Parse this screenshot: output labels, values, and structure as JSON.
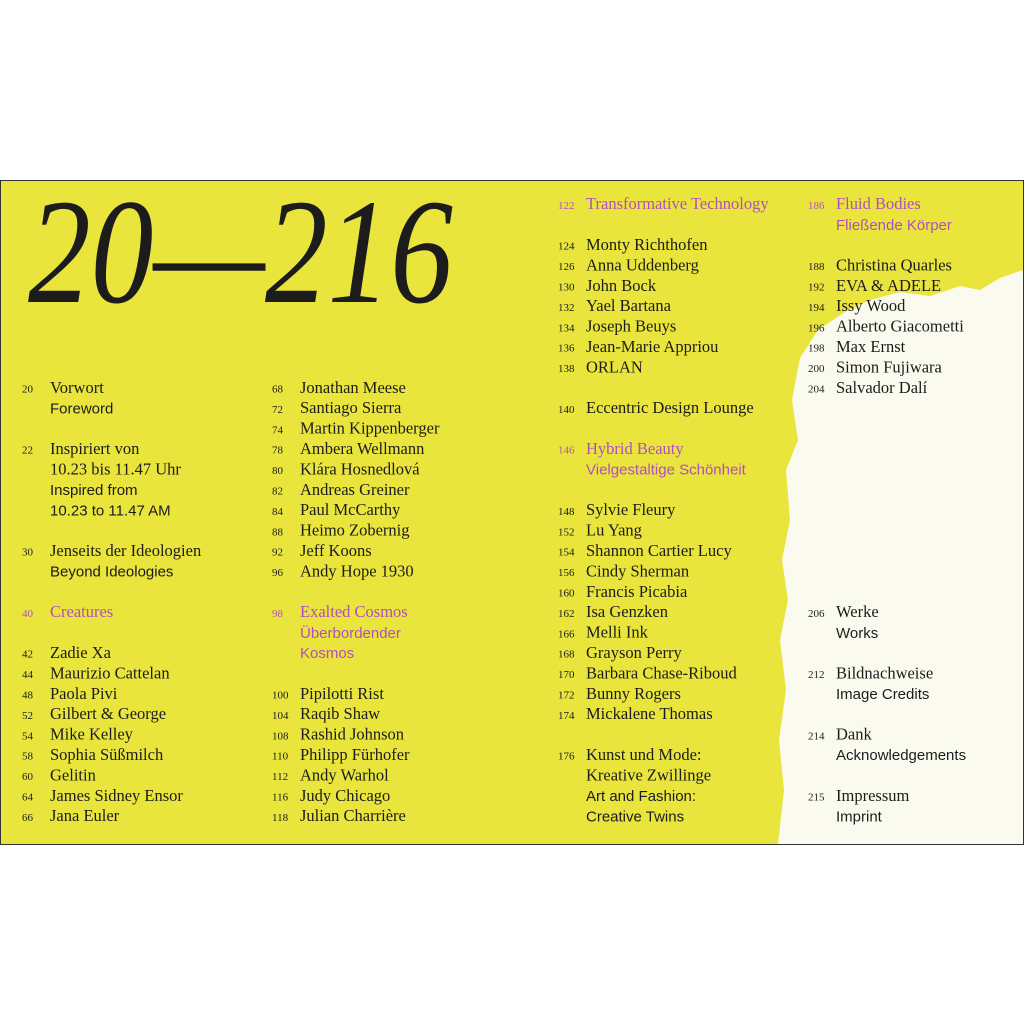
{
  "title": "20—216",
  "columns": [
    {
      "groups": [
        {
          "entries": [
            {
              "page": "20",
              "lines": [
                "Vorwort"
              ],
              "en": [
                "Foreword"
              ]
            }
          ]
        },
        {
          "entries": [
            {
              "page": "22",
              "lines": [
                "Inspiriert von",
                "10.23 bis 11.47 Uhr"
              ],
              "en": [
                "Inspired from",
                "10.23 to 11.47 AM"
              ]
            }
          ]
        },
        {
          "entries": [
            {
              "page": "30",
              "lines": [
                "Jenseits der Ideologien"
              ],
              "en": [
                "Beyond Ideologies"
              ]
            }
          ]
        },
        {
          "entries": [
            {
              "page": "40",
              "lines": [
                "Creatures"
              ],
              "en": [],
              "color": "#b14fc0"
            }
          ]
        },
        {
          "entries": [
            {
              "page": "42",
              "lines": [
                "Zadie Xa"
              ],
              "en": []
            },
            {
              "page": "44",
              "lines": [
                "Maurizio Cattelan"
              ],
              "en": []
            },
            {
              "page": "48",
              "lines": [
                "Paola Pivi"
              ],
              "en": []
            },
            {
              "page": "52",
              "lines": [
                "Gilbert & George"
              ],
              "en": []
            },
            {
              "page": "54",
              "lines": [
                "Mike Kelley"
              ],
              "en": []
            },
            {
              "page": "58",
              "lines": [
                "Sophia Süßmilch"
              ],
              "en": []
            },
            {
              "page": "60",
              "lines": [
                "Gelitin"
              ],
              "en": []
            },
            {
              "page": "64",
              "lines": [
                "James Sidney Ensor"
              ],
              "en": []
            },
            {
              "page": "66",
              "lines": [
                "Jana Euler"
              ],
              "en": []
            }
          ]
        }
      ]
    },
    {
      "groups": [
        {
          "entries": [
            {
              "page": "68",
              "lines": [
                "Jonathan Meese"
              ],
              "en": []
            },
            {
              "page": "72",
              "lines": [
                "Santiago Sierra"
              ],
              "en": []
            },
            {
              "page": "74",
              "lines": [
                "Martin Kippenberger"
              ],
              "en": []
            },
            {
              "page": "78",
              "lines": [
                "Ambera Wellmann"
              ],
              "en": []
            },
            {
              "page": "80",
              "lines": [
                "Klára Hosnedlová"
              ],
              "en": []
            },
            {
              "page": "82",
              "lines": [
                "Andreas Greiner"
              ],
              "en": []
            },
            {
              "page": "84",
              "lines": [
                "Paul McCarthy"
              ],
              "en": []
            },
            {
              "page": "88",
              "lines": [
                "Heimo Zobernig"
              ],
              "en": []
            },
            {
              "page": "92",
              "lines": [
                "Jeff Koons"
              ],
              "en": []
            },
            {
              "page": "96",
              "lines": [
                "Andy Hope 1930"
              ],
              "en": []
            }
          ]
        },
        {
          "entries": [
            {
              "page": "98",
              "lines": [
                "Exalted Cosmos"
              ],
              "en": [
                "Überbordender",
                "Kosmos"
              ],
              "color": "#b14fc0"
            }
          ]
        },
        {
          "entries": [
            {
              "page": "100",
              "lines": [
                "Pipilotti Rist"
              ],
              "en": []
            },
            {
              "page": "104",
              "lines": [
                "Raqib Shaw"
              ],
              "en": []
            },
            {
              "page": "108",
              "lines": [
                "Rashid Johnson"
              ],
              "en": []
            },
            {
              "page": "110",
              "lines": [
                "Philipp Fürhofer"
              ],
              "en": []
            },
            {
              "page": "112",
              "lines": [
                "Andy Warhol"
              ],
              "en": []
            },
            {
              "page": "116",
              "lines": [
                "Judy Chicago"
              ],
              "en": []
            },
            {
              "page": "118",
              "lines": [
                "Julian Charrière"
              ],
              "en": []
            }
          ]
        }
      ]
    },
    {
      "groups": [
        {
          "entries": [
            {
              "page": "122",
              "lines": [
                "Transformative Technology"
              ],
              "en": [],
              "color": "#b14fc0"
            }
          ]
        },
        {
          "entries": [
            {
              "page": "124",
              "lines": [
                "Monty Richthofen"
              ],
              "en": []
            },
            {
              "page": "126",
              "lines": [
                "Anna Uddenberg"
              ],
              "en": []
            },
            {
              "page": "130",
              "lines": [
                "John Bock"
              ],
              "en": []
            },
            {
              "page": "132",
              "lines": [
                "Yael Bartana"
              ],
              "en": []
            },
            {
              "page": "134",
              "lines": [
                "Joseph Beuys"
              ],
              "en": []
            },
            {
              "page": "136",
              "lines": [
                "Jean-Marie Appriou"
              ],
              "en": []
            },
            {
              "page": "138",
              "lines": [
                "ORLAN"
              ],
              "en": []
            }
          ]
        },
        {
          "entries": [
            {
              "page": "140",
              "lines": [
                "Eccentric Design Lounge"
              ],
              "en": []
            }
          ]
        },
        {
          "entries": [
            {
              "page": "146",
              "lines": [
                "Hybrid Beauty"
              ],
              "en": [
                "Vielgestaltige Schönheit"
              ],
              "color": "#b14fc0"
            }
          ]
        },
        {
          "entries": [
            {
              "page": "148",
              "lines": [
                "Sylvie Fleury"
              ],
              "en": []
            },
            {
              "page": "152",
              "lines": [
                "Lu Yang"
              ],
              "en": []
            },
            {
              "page": "154",
              "lines": [
                "Shannon Cartier Lucy"
              ],
              "en": []
            },
            {
              "page": "156",
              "lines": [
                "Cindy Sherman"
              ],
              "en": []
            },
            {
              "page": "160",
              "lines": [
                "Francis Picabia"
              ],
              "en": []
            },
            {
              "page": "162",
              "lines": [
                "Isa Genzken"
              ],
              "en": []
            },
            {
              "page": "166",
              "lines": [
                "Melli Ink"
              ],
              "en": []
            },
            {
              "page": "168",
              "lines": [
                "Grayson Perry"
              ],
              "en": []
            },
            {
              "page": "170",
              "lines": [
                "Barbara Chase-Riboud"
              ],
              "en": []
            },
            {
              "page": "172",
              "lines": [
                "Bunny Rogers"
              ],
              "en": []
            },
            {
              "page": "174",
              "lines": [
                "Mickalene Thomas"
              ],
              "en": []
            }
          ]
        },
        {
          "entries": [
            {
              "page": "176",
              "lines": [
                "Kunst und Mode:",
                "Kreative Zwillinge"
              ],
              "en": [
                "Art and Fashion:",
                "Creative Twins"
              ]
            }
          ]
        }
      ]
    },
    {
      "groups": [
        {
          "entries": [
            {
              "page": "186",
              "lines": [
                "Fluid Bodies"
              ],
              "en": [
                "Fließende Körper"
              ],
              "color": "#b14fc0"
            }
          ]
        },
        {
          "entries": [
            {
              "page": "188",
              "lines": [
                "Christina Quarles"
              ],
              "en": []
            },
            {
              "page": "192",
              "lines": [
                "EVA & ADELE"
              ],
              "en": []
            },
            {
              "page": "194",
              "lines": [
                "Issy Wood"
              ],
              "en": []
            },
            {
              "page": "196",
              "lines": [
                "Alberto Giacometti"
              ],
              "en": []
            },
            {
              "page": "198",
              "lines": [
                "Max Ernst"
              ],
              "en": []
            },
            {
              "page": "200",
              "lines": [
                "Simon Fujiwara"
              ],
              "en": []
            },
            {
              "page": "204",
              "lines": [
                "Salvador Dalí"
              ],
              "en": []
            }
          ]
        },
        {
          "entries": [
            {
              "page": "206",
              "lines": [
                "Werke"
              ],
              "en": [
                "Works"
              ]
            }
          ]
        },
        {
          "entries": [
            {
              "page": "212",
              "lines": [
                "Bildnachweise"
              ],
              "en": [
                "Image Credits"
              ]
            }
          ]
        },
        {
          "entries": [
            {
              "page": "214",
              "lines": [
                "Dank"
              ],
              "en": [
                "Acknowledgements"
              ]
            }
          ]
        },
        {
          "entries": [
            {
              "page": "215",
              "lines": [
                "Impressum"
              ],
              "en": [
                "Imprint"
              ]
            }
          ]
        }
      ]
    }
  ]
}
